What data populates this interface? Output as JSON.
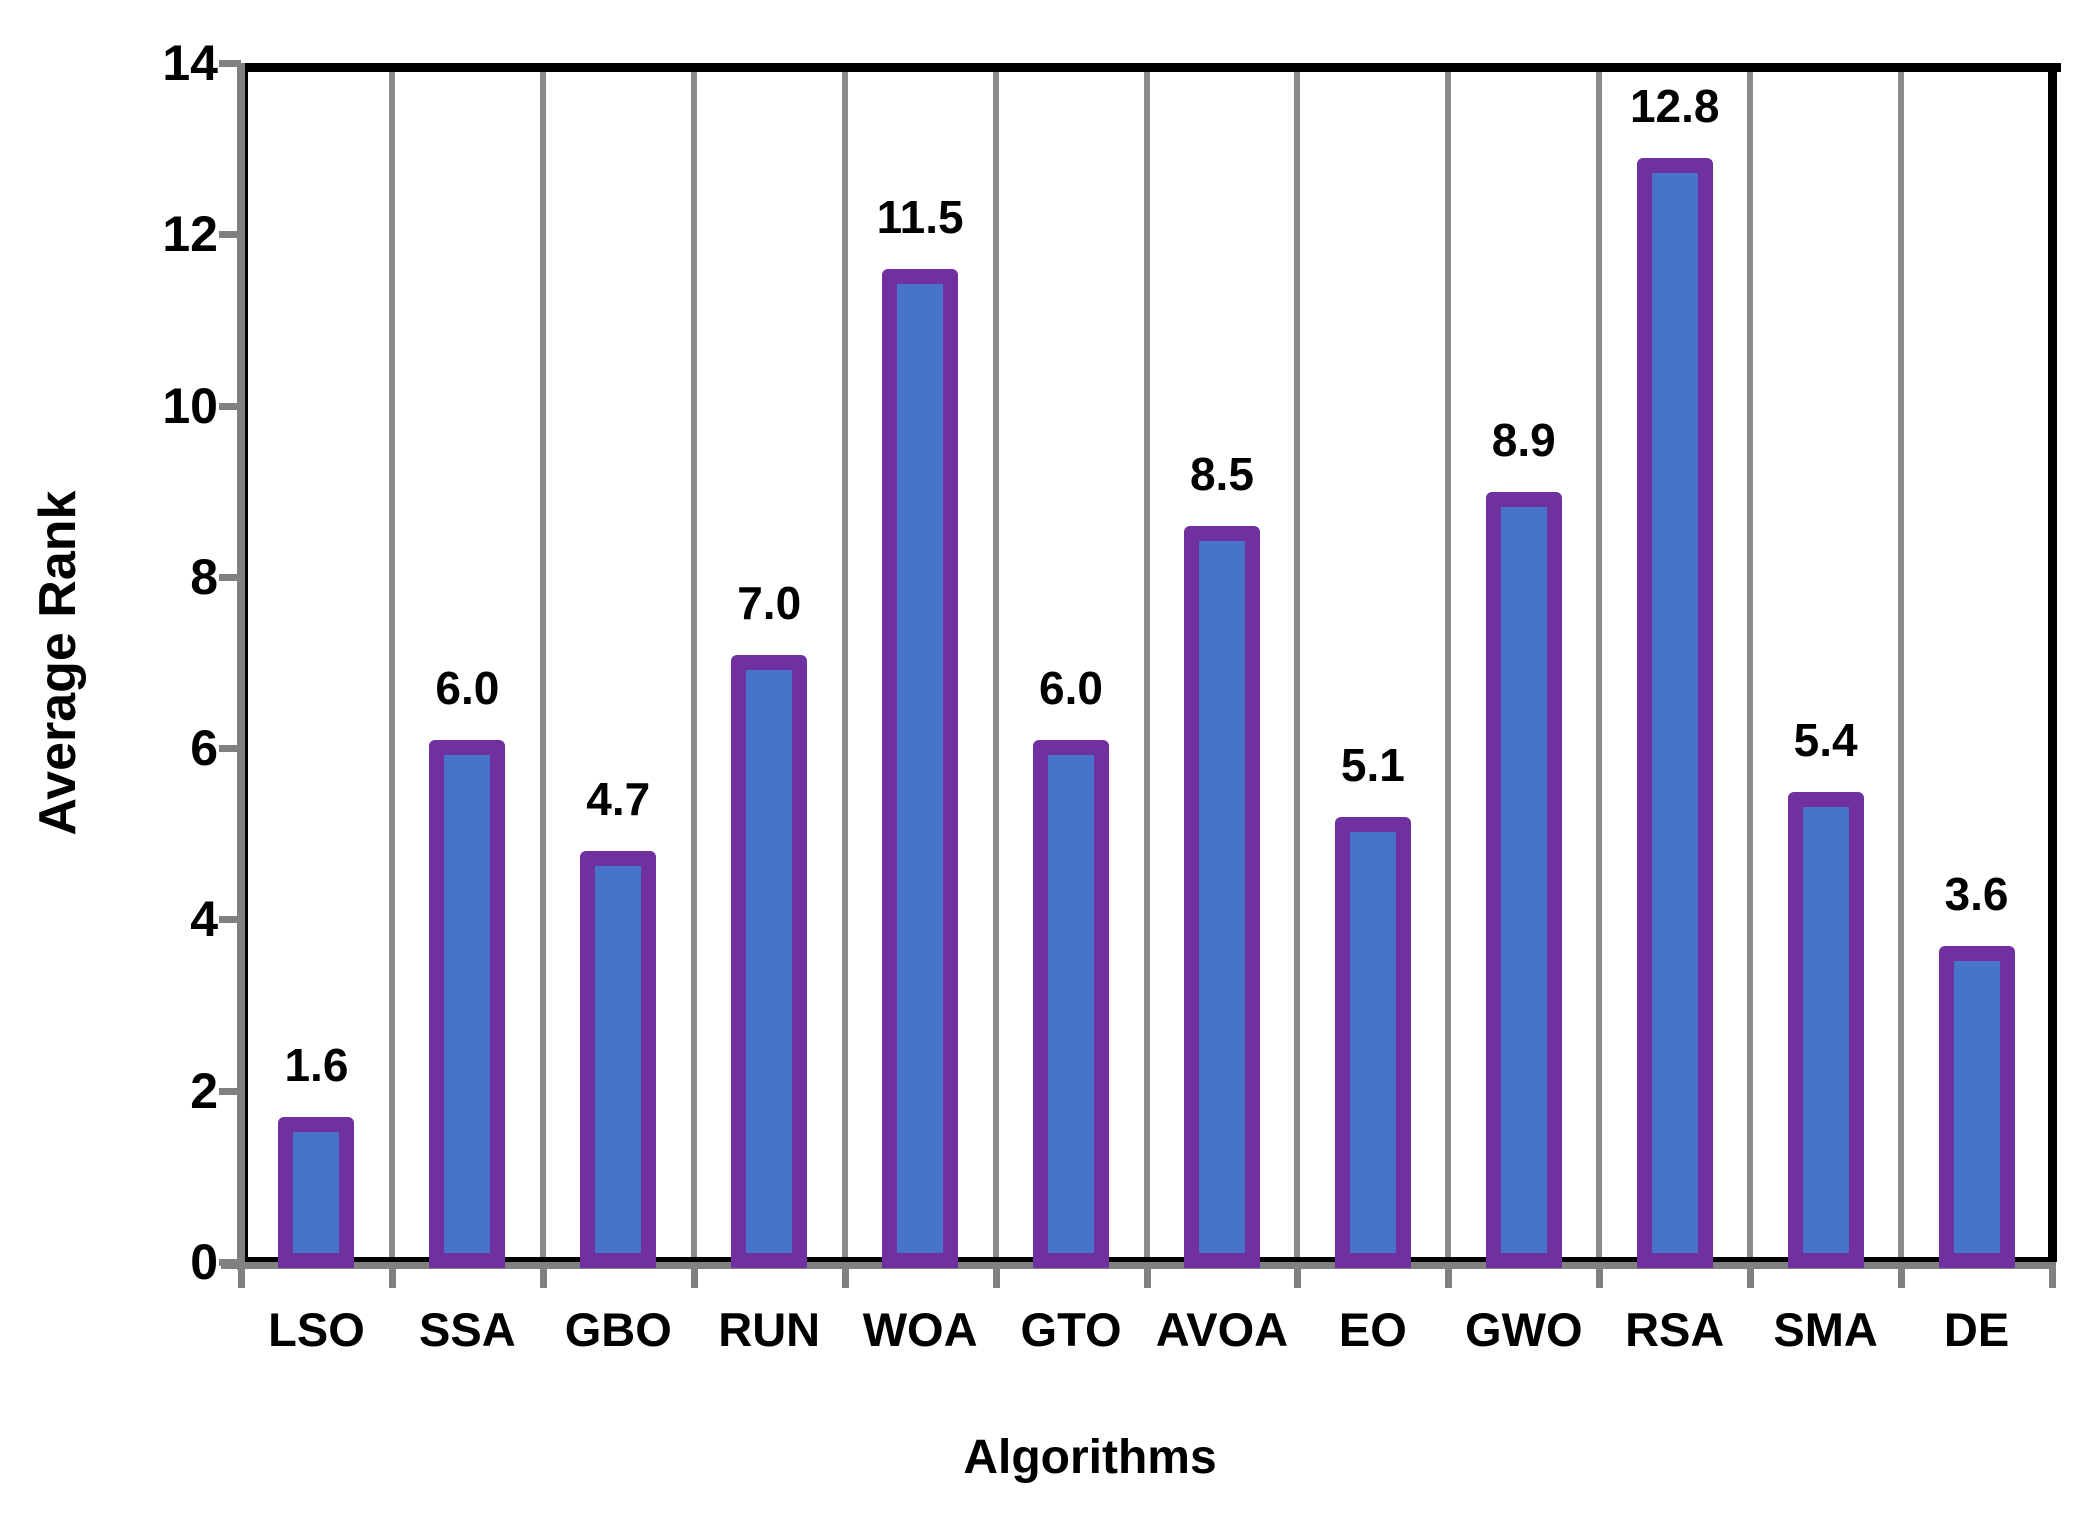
{
  "chart_data": {
    "type": "bar",
    "title": "",
    "xlabel": "Algorithms",
    "ylabel": "Average Rank",
    "categories": [
      "LSO",
      "SSA",
      "GBO",
      "RUN",
      "WOA",
      "GTO",
      "AVOA",
      "EO",
      "GWO",
      "RSA",
      "SMA",
      "DE"
    ],
    "values": [
      1.6,
      6.0,
      4.7,
      7.0,
      11.5,
      6.0,
      8.5,
      5.1,
      8.9,
      12.8,
      5.4,
      3.6
    ],
    "value_labels": [
      "1.6",
      "6.0",
      "4.7",
      "7.0",
      "11.5",
      "6.0",
      "8.5",
      "5.1",
      "8.9",
      "12.8",
      "5.4",
      "3.6"
    ],
    "ylim": [
      0,
      14
    ],
    "yticks": [
      0,
      2,
      4,
      6,
      8,
      10,
      12,
      14
    ],
    "ytick_labels": [
      "0",
      "2",
      "4",
      "6",
      "8",
      "10",
      "12",
      "14"
    ],
    "grid": "vertical-between-categories",
    "legend": "none",
    "colors": {
      "bar_fill": "#4674C8",
      "bar_border": "#7030A0",
      "gridline": "#8C8C8C",
      "axis_line": "#808080",
      "plot_border": "#000000",
      "text": "#000000",
      "background": "#FFFFFF"
    }
  }
}
